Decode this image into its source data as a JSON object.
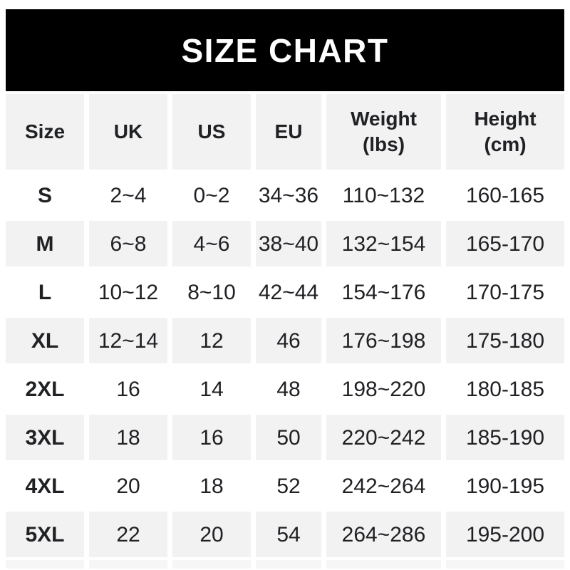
{
  "banner": {
    "title": "SIZE CHART",
    "background": "#000000",
    "text_color": "#ffffff"
  },
  "chart_data": {
    "type": "table",
    "title": "SIZE CHART",
    "columns": [
      {
        "label": "Size",
        "sub": ""
      },
      {
        "label": "UK",
        "sub": ""
      },
      {
        "label": "US",
        "sub": ""
      },
      {
        "label": "EU",
        "sub": ""
      },
      {
        "label": "Weight",
        "sub": "(lbs)"
      },
      {
        "label": "Height",
        "sub": "(cm)"
      }
    ],
    "rows": [
      {
        "size": "S",
        "uk": "2~4",
        "us": "0~2",
        "eu": "34~36",
        "weight_lbs": "110~132",
        "height_cm": "160-165"
      },
      {
        "size": "M",
        "uk": "6~8",
        "us": "4~6",
        "eu": "38~40",
        "weight_lbs": "132~154",
        "height_cm": "165-170"
      },
      {
        "size": "L",
        "uk": "10~12",
        "us": "8~10",
        "eu": "42~44",
        "weight_lbs": "154~176",
        "height_cm": "170-175"
      },
      {
        "size": "XL",
        "uk": "12~14",
        "us": "12",
        "eu": "46",
        "weight_lbs": "176~198",
        "height_cm": "175-180"
      },
      {
        "size": "2XL",
        "uk": "16",
        "us": "14",
        "eu": "48",
        "weight_lbs": "198~220",
        "height_cm": "180-185"
      },
      {
        "size": "3XL",
        "uk": "18",
        "us": "16",
        "eu": "50",
        "weight_lbs": "220~242",
        "height_cm": "185-190"
      },
      {
        "size": "4XL",
        "uk": "20",
        "us": "18",
        "eu": "52",
        "weight_lbs": "242~264",
        "height_cm": "190-195"
      },
      {
        "size": "5XL",
        "uk": "22",
        "us": "20",
        "eu": "54",
        "weight_lbs": "264~286",
        "height_cm": "195-200"
      }
    ],
    "layout": {
      "striping": "gray header row, then alternating white/gray data rows, white gaps between cells",
      "legend_position": "none",
      "grid": "off"
    },
    "colors": {
      "row_alt_background": "#f2f2f2",
      "text": "#202124",
      "banner_background": "#000000",
      "banner_text": "#ffffff"
    }
  }
}
